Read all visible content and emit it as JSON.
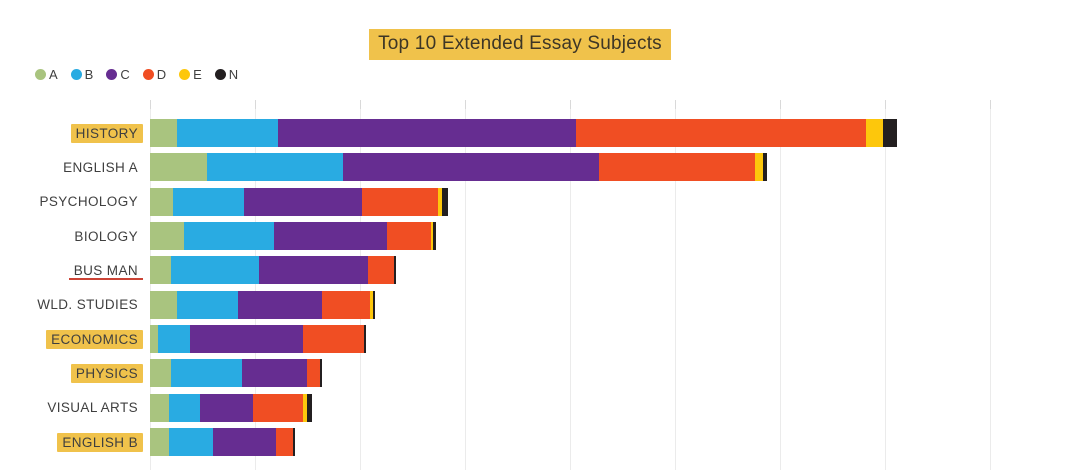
{
  "title": "Top 10 Extended Essay Subjects",
  "legend": {
    "items": [
      {
        "label": "A",
        "color": "#A9C47F"
      },
      {
        "label": "B",
        "color": "#29ABE2"
      },
      {
        "label": "C",
        "color": "#662D91"
      },
      {
        "label": "D",
        "color": "#F04E23"
      },
      {
        "label": "E",
        "color": "#FDC70C"
      },
      {
        "label": "N",
        "color": "#231F20"
      }
    ]
  },
  "rows": [
    {
      "label": "HISTORY",
      "highlight": true,
      "underline": false
    },
    {
      "label": "ENGLISH A",
      "highlight": false,
      "underline": false
    },
    {
      "label": "PSYCHOLOGY",
      "highlight": false,
      "underline": false
    },
    {
      "label": "BIOLOGY",
      "highlight": false,
      "underline": false
    },
    {
      "label": "BUS MAN",
      "highlight": false,
      "underline": true
    },
    {
      "label": "WLD. STUDIES",
      "highlight": false,
      "underline": false
    },
    {
      "label": "ECONOMICS",
      "highlight": true,
      "underline": false
    },
    {
      "label": "PHYSICS",
      "highlight": true,
      "underline": false
    },
    {
      "label": "VISUAL ARTS",
      "highlight": false,
      "underline": false
    },
    {
      "label": "ENGLISH B",
      "highlight": true,
      "underline": false
    }
  ],
  "chart_data": {
    "type": "bar",
    "orientation": "horizontal",
    "stacked": true,
    "title": "Top 10 Extended Essay Subjects",
    "categories": [
      "HISTORY",
      "ENGLISH A",
      "PSYCHOLOGY",
      "BIOLOGY",
      "BUS MAN",
      "WLD. STUDIES",
      "ECONOMICS",
      "PHYSICS",
      "VISUAL ARTS",
      "ENGLISH B"
    ],
    "series": [
      {
        "name": "A",
        "color": "#A9C47F",
        "values": [
          13,
          27,
          11,
          16,
          10,
          13,
          4,
          10,
          9,
          9
        ]
      },
      {
        "name": "B",
        "color": "#29ABE2",
        "values": [
          48,
          65,
          34,
          43,
          42,
          29,
          15,
          34,
          15,
          21
        ]
      },
      {
        "name": "C",
        "color": "#662D91",
        "values": [
          142,
          122,
          56,
          54,
          52,
          40,
          54,
          31,
          25,
          30
        ]
      },
      {
        "name": "D",
        "color": "#F04E23",
        "values": [
          138,
          74,
          36,
          21,
          12,
          23,
          29,
          6,
          24,
          8
        ]
      },
      {
        "name": "E",
        "color": "#FDC70C",
        "values": [
          8,
          4,
          2,
          1,
          0,
          1,
          0,
          0,
          2,
          0
        ]
      },
      {
        "name": "N",
        "color": "#231F20",
        "values": [
          7,
          2,
          3,
          1,
          1,
          1,
          1,
          1,
          2,
          1
        ]
      }
    ],
    "totals": [
      356,
      294,
      142,
      136,
      117,
      107,
      103,
      82,
      77,
      69
    ],
    "xlim": [
      0,
      443
    ],
    "gridline_interval": 50,
    "x_tick_labels_visible": false,
    "grid": true,
    "legend_position": "top-left",
    "legend_entries": [
      "A",
      "B",
      "C",
      "D",
      "E",
      "N"
    ]
  },
  "colors": {
    "highlight": "#F0C24B",
    "underline_red": "#CB4335",
    "gridline": "#EBEBEB",
    "grid_tick": "#D9D9D9",
    "label_text": "#3F3F3F",
    "title_text": "#3D3626",
    "background": "#FFFFFF"
  }
}
